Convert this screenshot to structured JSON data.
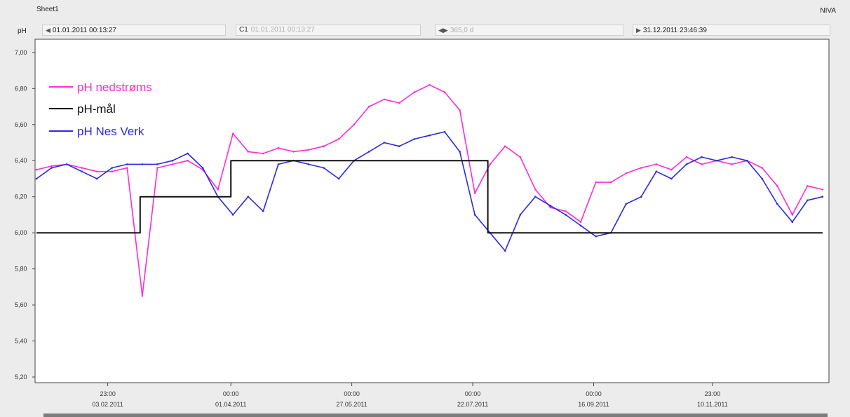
{
  "header": {
    "sheet_title": "Sheet1",
    "brand": "NIVA"
  },
  "cursors": {
    "unit": "pH",
    "start": "01.01.2011 00:13:27",
    "c1_label": "C1",
    "c1_value": "01.01.2011 00:13:27",
    "span": "365,0 d",
    "end": "31.12.2011 23:46:39"
  },
  "colors": {
    "pink": "#ff2bd6",
    "black": "#111111",
    "blue": "#2a2ae0"
  },
  "chart_data": {
    "type": "line",
    "ylim": [
      5.2,
      7.05
    ],
    "yticks": [
      "7,00",
      "6,80",
      "6,60",
      "6,40",
      "6,20",
      "6,00",
      "5,80",
      "5,60",
      "5,40",
      "5,20"
    ],
    "ytick_values": [
      7.0,
      6.8,
      6.6,
      6.4,
      6.2,
      6.0,
      5.8,
      5.6,
      5.4,
      5.2
    ],
    "xlim": [
      "01.01.2011 00:13:27",
      "31.12.2011 23:46:39"
    ],
    "xticks": [
      {
        "time": "23:00",
        "date": "03.02.2011"
      },
      {
        "time": "00:00",
        "date": "01.04.2011"
      },
      {
        "time": "00:00",
        "date": "27.05.2011"
      },
      {
        "time": "00:00",
        "date": "22.07.2011"
      },
      {
        "time": "00:00",
        "date": "16.09.2011"
      },
      {
        "time": "23:00",
        "date": "10.11.2011"
      }
    ],
    "xtick_days": [
      33,
      90,
      146,
      202,
      258,
      313
    ],
    "legend": {
      "position": "top-left"
    },
    "series": [
      {
        "name": "pH nedstrøms",
        "color": "#ff2bd6",
        "x": [
          "01.01.2011",
          "08.01.2011",
          "15.01.2011",
          "22.01.2011",
          "29.01.2011",
          "05.02.2011",
          "12.02.2011",
          "19.02.2011",
          "26.02.2011",
          "05.03.2011",
          "12.03.2011",
          "19.03.2011",
          "26.03.2011",
          "02.04.2011",
          "09.04.2011",
          "16.04.2011",
          "23.04.2011",
          "30.04.2011",
          "07.05.2011",
          "14.05.2011",
          "21.05.2011",
          "28.05.2011",
          "04.06.2011",
          "11.06.2011",
          "18.06.2011",
          "25.06.2011",
          "02.07.2011",
          "09.07.2011",
          "16.07.2011",
          "23.07.2011",
          "30.07.2011",
          "06.08.2011",
          "13.08.2011",
          "20.08.2011",
          "27.08.2011",
          "03.09.2011",
          "10.09.2011",
          "17.09.2011",
          "24.09.2011",
          "01.10.2011",
          "08.10.2011",
          "15.10.2011",
          "22.10.2011",
          "29.10.2011",
          "05.11.2011",
          "12.11.2011",
          "19.11.2011",
          "26.11.2011",
          "03.12.2011",
          "10.12.2011",
          "17.12.2011",
          "24.12.2011",
          "31.12.2011"
        ],
        "y": [
          6.35,
          6.37,
          6.38,
          6.36,
          6.34,
          6.34,
          6.36,
          5.65,
          6.36,
          6.38,
          6.4,
          6.35,
          6.24,
          6.55,
          6.45,
          6.44,
          6.47,
          6.45,
          6.46,
          6.48,
          6.52,
          6.6,
          6.7,
          6.74,
          6.72,
          6.78,
          6.82,
          6.78,
          6.68,
          6.22,
          6.38,
          6.48,
          6.42,
          6.24,
          6.14,
          6.12,
          6.06,
          6.28,
          6.28,
          6.33,
          6.36,
          6.38,
          6.35,
          6.42,
          6.38,
          6.4,
          6.38,
          6.4,
          6.36,
          6.26,
          6.1,
          6.26,
          6.24
        ]
      },
      {
        "name": "pH-mål",
        "color": "#111111",
        "x": [
          "01.01.2011",
          "18.02.2011",
          "18.02.2011",
          "01.04.2011",
          "01.04.2011",
          "29.07.2011",
          "29.07.2011",
          "31.12.2011"
        ],
        "y": [
          6.0,
          6.0,
          6.2,
          6.2,
          6.4,
          6.4,
          6.0,
          6.0
        ]
      },
      {
        "name": "pH Nes Verk",
        "color": "#2a2ae0",
        "x": [
          "01.01.2011",
          "08.01.2011",
          "15.01.2011",
          "22.01.2011",
          "29.01.2011",
          "05.02.2011",
          "12.02.2011",
          "19.02.2011",
          "26.02.2011",
          "05.03.2011",
          "12.03.2011",
          "19.03.2011",
          "26.03.2011",
          "02.04.2011",
          "09.04.2011",
          "16.04.2011",
          "23.04.2011",
          "30.04.2011",
          "07.05.2011",
          "14.05.2011",
          "21.05.2011",
          "28.05.2011",
          "04.06.2011",
          "11.06.2011",
          "18.06.2011",
          "25.06.2011",
          "02.07.2011",
          "09.07.2011",
          "16.07.2011",
          "23.07.2011",
          "30.07.2011",
          "06.08.2011",
          "13.08.2011",
          "20.08.2011",
          "27.08.2011",
          "03.09.2011",
          "10.09.2011",
          "17.09.2011",
          "24.09.2011",
          "01.10.2011",
          "08.10.2011",
          "15.10.2011",
          "22.10.2011",
          "29.10.2011",
          "05.11.2011",
          "12.11.2011",
          "19.11.2011",
          "26.11.2011",
          "03.12.2011",
          "10.12.2011",
          "17.12.2011",
          "24.12.2011",
          "31.12.2011"
        ],
        "y": [
          6.3,
          6.36,
          6.38,
          6.34,
          6.3,
          6.36,
          6.38,
          6.38,
          6.38,
          6.4,
          6.44,
          6.36,
          6.2,
          6.1,
          6.2,
          6.12,
          6.38,
          6.4,
          6.38,
          6.36,
          6.3,
          6.4,
          6.45,
          6.5,
          6.48,
          6.52,
          6.54,
          6.56,
          6.45,
          6.1,
          6.0,
          5.9,
          6.1,
          6.2,
          6.15,
          6.1,
          6.04,
          5.98,
          6.0,
          6.16,
          6.2,
          6.34,
          6.3,
          6.38,
          6.42,
          6.4,
          6.42,
          6.4,
          6.3,
          6.16,
          6.06,
          6.18,
          6.2
        ]
      }
    ]
  }
}
